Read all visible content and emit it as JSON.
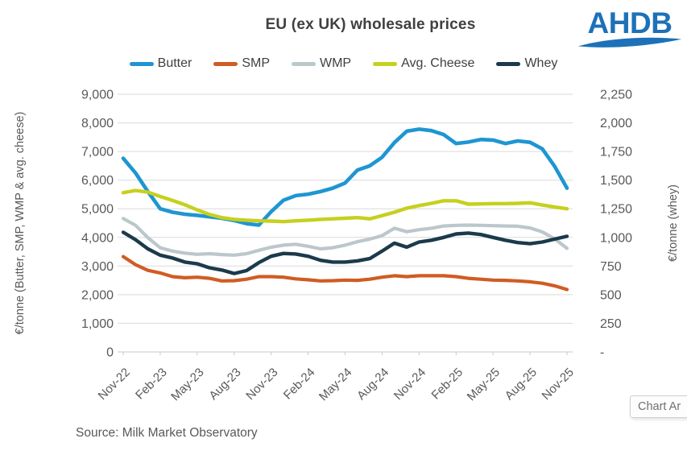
{
  "logo": {
    "text": "AHDB",
    "color": "#1d71b8"
  },
  "legend": {
    "items": [
      {
        "label": "Butter",
        "color": "#1e96d2"
      },
      {
        "label": "SMP",
        "color": "#d05c24"
      },
      {
        "label": "WMP",
        "color": "#bcc7cb"
      },
      {
        "label": "Avg. Cheese",
        "color": "#c6d01f"
      },
      {
        "label": "Whey",
        "color": "#1b3a4b"
      }
    ]
  },
  "chart_data": {
    "type": "line",
    "title": "EU (ex UK) wholesale prices",
    "grid": "horizontal",
    "legend_position": "top",
    "x": [
      "Nov-22",
      "Dec-22",
      "Jan-23",
      "Feb-23",
      "Mar-23",
      "Apr-23",
      "May-23",
      "Jun-23",
      "Jul-23",
      "Aug-23",
      "Sep-23",
      "Oct-23",
      "Nov-23",
      "Dec-23",
      "Jan-24",
      "Feb-24",
      "Mar-24",
      "Apr-24",
      "May-24",
      "Jun-24",
      "Jul-24",
      "Aug-24",
      "Sep-24",
      "Oct-24",
      "Nov-24",
      "Dec-24",
      "Jan-25",
      "Feb-25",
      "Mar-25",
      "Apr-25",
      "May-25",
      "Jun-25",
      "Jul-25",
      "Aug-25",
      "Sep-25",
      "Oct-25",
      "Nov-25"
    ],
    "x_tick_labels": [
      "Nov-22",
      "Feb-23",
      "May-23",
      "Aug-23",
      "Nov-23",
      "Feb-24",
      "May-24",
      "Aug-24",
      "Nov-24",
      "Feb-25",
      "May-25",
      "Aug-25",
      "Nov-25"
    ],
    "left_axis": {
      "title": "€/tonne (Butter, SMP, WMP & avg. cheese)",
      "min": 0,
      "max": 9000,
      "step": 1000,
      "tick_labels": [
        "9,000",
        "8,000",
        "7,000",
        "6,000",
        "5,000",
        "4,000",
        "3,000",
        "2,000",
        "1,000",
        "0"
      ]
    },
    "right_axis": {
      "title": "€/tonne (whey)",
      "min": 0,
      "max": 2250,
      "step": 250,
      "tick_labels": [
        "2,250",
        "2,000",
        "1,750",
        "1,500",
        "1,250",
        "1,000",
        "750",
        "500",
        "250",
        "-"
      ]
    },
    "series": [
      {
        "name": "Butter",
        "axis": "left",
        "color": "#1e96d2",
        "width": 4.6,
        "values": [
          6760,
          6250,
          5600,
          5000,
          4880,
          4810,
          4770,
          4720,
          4670,
          4590,
          4480,
          4430,
          4900,
          5300,
          5460,
          5510,
          5600,
          5720,
          5900,
          6350,
          6500,
          6800,
          7310,
          7710,
          7780,
          7730,
          7590,
          7280,
          7330,
          7420,
          7400,
          7280,
          7370,
          7320,
          7090,
          6480,
          5720
        ]
      },
      {
        "name": "SMP",
        "axis": "left",
        "color": "#d05c24",
        "width": 4.2,
        "values": [
          3330,
          3050,
          2850,
          2760,
          2630,
          2590,
          2610,
          2570,
          2480,
          2490,
          2540,
          2630,
          2630,
          2610,
          2550,
          2520,
          2480,
          2490,
          2510,
          2500,
          2540,
          2610,
          2660,
          2630,
          2660,
          2660,
          2660,
          2630,
          2570,
          2540,
          2510,
          2500,
          2480,
          2450,
          2400,
          2310,
          2180
        ]
      },
      {
        "name": "WMP",
        "axis": "left",
        "color": "#bcc7cb",
        "width": 4.2,
        "values": [
          4660,
          4420,
          3990,
          3640,
          3520,
          3450,
          3410,
          3430,
          3400,
          3380,
          3430,
          3550,
          3660,
          3730,
          3760,
          3690,
          3600,
          3640,
          3730,
          3850,
          3940,
          4060,
          4320,
          4200,
          4270,
          4320,
          4400,
          4420,
          4430,
          4420,
          4410,
          4400,
          4390,
          4330,
          4190,
          3950,
          3620
        ]
      },
      {
        "name": "Avg. Cheese",
        "axis": "left",
        "color": "#c6d01f",
        "width": 4.4,
        "values": [
          5560,
          5640,
          5580,
          5430,
          5290,
          5140,
          4960,
          4800,
          4690,
          4630,
          4600,
          4580,
          4570,
          4550,
          4580,
          4600,
          4630,
          4650,
          4670,
          4690,
          4650,
          4760,
          4880,
          5020,
          5110,
          5190,
          5280,
          5280,
          5160,
          5170,
          5180,
          5180,
          5190,
          5210,
          5130,
          5060,
          5000
        ]
      },
      {
        "name": "Whey",
        "axis": "right",
        "color": "#1b3a4b",
        "width": 4.4,
        "values": [
          1045,
          980,
          900,
          845,
          820,
          785,
          770,
          735,
          715,
          685,
          710,
          780,
          835,
          860,
          855,
          835,
          800,
          785,
          785,
          795,
          815,
          880,
          950,
          915,
          960,
          975,
          1000,
          1030,
          1038,
          1025,
          1000,
          975,
          955,
          945,
          960,
          985,
          1010
        ]
      }
    ]
  },
  "footer": {
    "source": "Source: Milk Market Observatory"
  },
  "tooltip": {
    "label": "Chart Ar"
  }
}
